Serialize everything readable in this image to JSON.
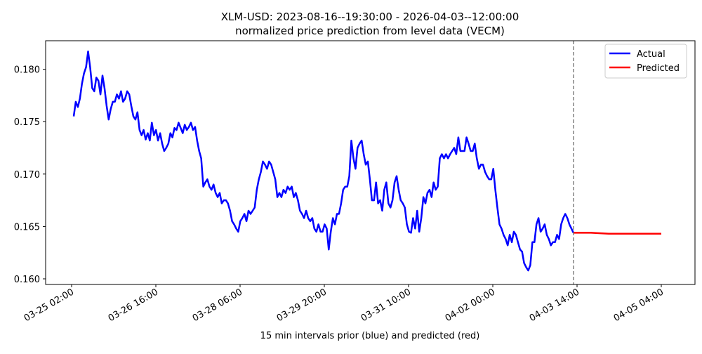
{
  "chart_data": {
    "type": "line",
    "title_line1": "XLM-USD: 2023-08-16--19:30:00 - 2026-04-03--12:00:00",
    "title_line2": "normalized price prediction from level data (VECM)",
    "xlabel": "15 min intervals prior (blue) and predicted (red)",
    "ylabel": "",
    "x_unit": "hours since 03-25 02:00",
    "xlim_hours": [
      -11.7,
      281
    ],
    "ylim": [
      0.1595,
      0.1826
    ],
    "yticks": [
      0.16,
      0.165,
      0.17,
      0.175,
      0.18
    ],
    "ytick_labels": [
      "0.160",
      "0.165",
      "0.170",
      "0.175",
      "0.180"
    ],
    "xticks_hours": [
      0,
      38,
      76,
      114,
      152,
      190,
      228,
      266
    ],
    "xtick_labels": [
      "03-25 02:00",
      "03-26 16:00",
      "03-28 06:00",
      "03-29 20:00",
      "03-31 10:00",
      "04-02 00:00",
      "04-03 14:00",
      "04-05 04:00"
    ],
    "forecast_start_hours": 226.4,
    "legend": {
      "placement": "top-right",
      "entries": [
        "Actual",
        "Predicted"
      ]
    },
    "grid": false,
    "series": [
      {
        "name": "Actual",
        "color": "#0000ff",
        "x_start_hours": 0.95,
        "x_end_hours": 226.4,
        "values": [
          0.1755,
          0.1769,
          0.1764,
          0.1772,
          0.1786,
          0.1796,
          0.1802,
          0.1817,
          0.1802,
          0.1782,
          0.1779,
          0.1792,
          0.1789,
          0.1776,
          0.1794,
          0.1782,
          0.1765,
          0.1752,
          0.1762,
          0.1769,
          0.1769,
          0.1776,
          0.1772,
          0.1779,
          0.1769,
          0.1772,
          0.1779,
          0.1776,
          0.1765,
          0.1755,
          0.1752,
          0.1759,
          0.1742,
          0.1737,
          0.1742,
          0.1733,
          0.1739,
          0.1732,
          0.1749,
          0.1737,
          0.1742,
          0.1732,
          0.1739,
          0.1729,
          0.1722,
          0.1725,
          0.1729,
          0.1739,
          0.1735,
          0.1744,
          0.1742,
          0.1749,
          0.1744,
          0.1739,
          0.1747,
          0.1742,
          0.1745,
          0.1749,
          0.1742,
          0.1745,
          0.1732,
          0.1722,
          0.1715,
          0.1688,
          0.1692,
          0.1695,
          0.1688,
          0.1685,
          0.169,
          0.1682,
          0.1678,
          0.1682,
          0.1672,
          0.1675,
          0.1675,
          0.1672,
          0.1665,
          0.1655,
          0.1652,
          0.1648,
          0.1645,
          0.1655,
          0.1658,
          0.1662,
          0.1655,
          0.1665,
          0.1662,
          0.1665,
          0.1668,
          0.1685,
          0.1695,
          0.1702,
          0.1712,
          0.1709,
          0.1705,
          0.1712,
          0.1709,
          0.1702,
          0.1695,
          0.1678,
          0.1682,
          0.1678,
          0.1685,
          0.1682,
          0.1688,
          0.1685,
          0.1688,
          0.1678,
          0.1682,
          0.1675,
          0.1665,
          0.1662,
          0.1658,
          0.1665,
          0.1658,
          0.1655,
          0.1658,
          0.1648,
          0.1645,
          0.1652,
          0.1645,
          0.1645,
          0.1652,
          0.1648,
          0.1628,
          0.1645,
          0.1658,
          0.1652,
          0.1662,
          0.1662,
          0.1672,
          0.1685,
          0.1688,
          0.1688,
          0.1698,
          0.1732,
          0.1715,
          0.1705,
          0.1725,
          0.1729,
          0.1732,
          0.1719,
          0.1709,
          0.1712,
          0.1695,
          0.1675,
          0.1675,
          0.1692,
          0.1672,
          0.1675,
          0.1665,
          0.1685,
          0.1692,
          0.1672,
          0.1668,
          0.1675,
          0.1692,
          0.1698,
          0.1685,
          0.1675,
          0.1672,
          0.1668,
          0.1652,
          0.1645,
          0.1644,
          0.1658,
          0.1648,
          0.1665,
          0.1645,
          0.1658,
          0.1678,
          0.1672,
          0.1682,
          0.1685,
          0.1678,
          0.1692,
          0.1685,
          0.1688,
          0.1715,
          0.1719,
          0.1715,
          0.1719,
          0.1715,
          0.1719,
          0.1722,
          0.1725,
          0.1719,
          0.1735,
          0.1722,
          0.1722,
          0.1722,
          0.1735,
          0.1729,
          0.1722,
          0.1722,
          0.1729,
          0.1715,
          0.1705,
          0.1709,
          0.1709,
          0.1702,
          0.1698,
          0.1695,
          0.1695,
          0.1705,
          0.1685,
          0.1668,
          0.1652,
          0.1648,
          0.1642,
          0.1638,
          0.1632,
          0.1642,
          0.1635,
          0.1645,
          0.1642,
          0.1635,
          0.1628,
          0.1626,
          0.1615,
          0.1611,
          0.1608,
          0.1613,
          0.1635,
          0.1635,
          0.1652,
          0.1658,
          0.1645,
          0.1648,
          0.1652,
          0.1642,
          0.1638,
          0.1632,
          0.1635,
          0.1635,
          0.1642,
          0.1638,
          0.1652,
          0.1658,
          0.1662,
          0.1658,
          0.1652,
          0.1648,
          0.1644
        ]
      },
      {
        "name": "Predicted",
        "color": "#ff0000",
        "x_start_hours": 226.4,
        "x_end_hours": 266,
        "values": [
          0.1644,
          0.1644,
          0.1643,
          0.1643,
          0.1643,
          0.1643
        ]
      }
    ]
  }
}
